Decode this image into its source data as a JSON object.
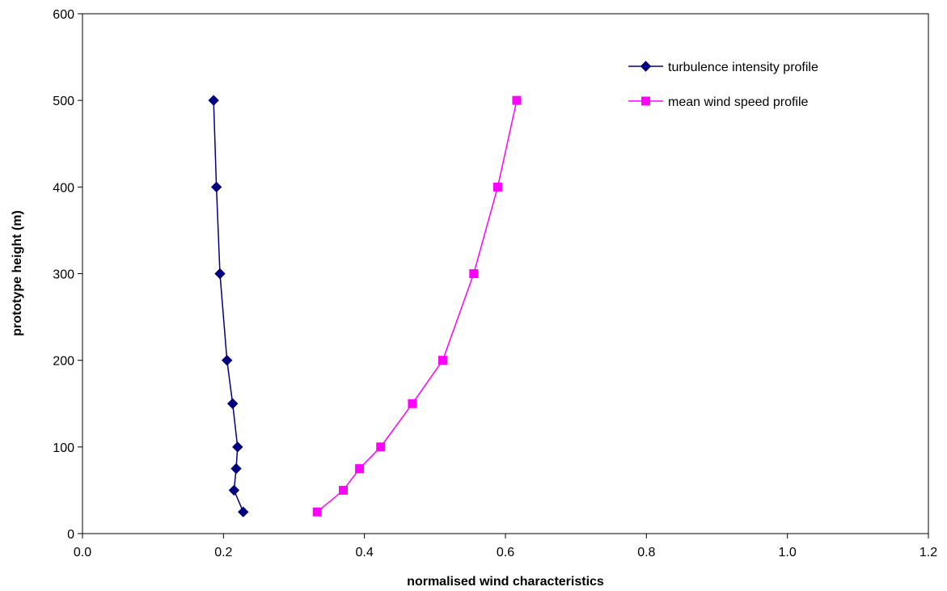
{
  "chart_data": {
    "type": "line",
    "title": "",
    "xlabel": "normalised wind characteristics",
    "ylabel": "prototype height (m)",
    "xlim": [
      0,
      1.2
    ],
    "ylim": [
      0,
      600
    ],
    "x_ticks": [
      "0.0",
      "0.2",
      "0.4",
      "0.6",
      "0.8",
      "1.0",
      "1.2"
    ],
    "y_ticks": [
      "0",
      "100",
      "200",
      "300",
      "400",
      "500",
      "600"
    ],
    "grid": false,
    "legend_position": "top-right",
    "series": [
      {
        "name": "turbulence intensity profile",
        "color": "#000080",
        "marker": "diamond",
        "points": [
          {
            "x": 0.228,
            "y": 25
          },
          {
            "x": 0.215,
            "y": 50
          },
          {
            "x": 0.218,
            "y": 75
          },
          {
            "x": 0.22,
            "y": 100
          },
          {
            "x": 0.213,
            "y": 150
          },
          {
            "x": 0.205,
            "y": 200
          },
          {
            "x": 0.195,
            "y": 300
          },
          {
            "x": 0.19,
            "y": 400
          },
          {
            "x": 0.186,
            "y": 500
          }
        ]
      },
      {
        "name": "mean wind speed profile",
        "color": "#FF00FF",
        "marker": "square",
        "points": [
          {
            "x": 0.333,
            "y": 25
          },
          {
            "x": 0.37,
            "y": 50
          },
          {
            "x": 0.393,
            "y": 75
          },
          {
            "x": 0.423,
            "y": 100
          },
          {
            "x": 0.468,
            "y": 150
          },
          {
            "x": 0.511,
            "y": 200
          },
          {
            "x": 0.555,
            "y": 300
          },
          {
            "x": 0.589,
            "y": 400
          },
          {
            "x": 0.616,
            "y": 500
          }
        ]
      }
    ]
  }
}
